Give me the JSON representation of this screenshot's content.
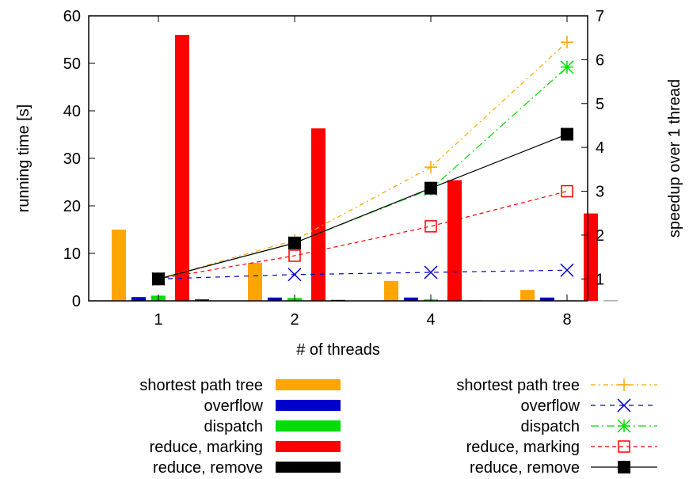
{
  "chart_data": {
    "type": "bar",
    "categories": [
      "1",
      "2",
      "4",
      "8"
    ],
    "xlabel": "# of threads",
    "ylabel": "running time [s]",
    "y2label": "speedup over 1 thread",
    "ylim": [
      0,
      60
    ],
    "yticks": [
      0,
      10,
      20,
      30,
      40,
      50,
      60
    ],
    "y2lim": [
      0.5,
      7
    ],
    "y2ticks": [
      1,
      2,
      3,
      4,
      5,
      6,
      7
    ],
    "grid": false,
    "legend_placement": "bottom",
    "bar_series": [
      {
        "name": "shortest path tree",
        "color": "#ffa500",
        "values": [
          15,
          8,
          4.2,
          2.3
        ]
      },
      {
        "name": "overflow",
        "color": "#0000cc",
        "values": [
          0.8,
          0.7,
          0.7,
          0.7
        ]
      },
      {
        "name": "dispatch",
        "color": "#00dd00",
        "values": [
          1.1,
          0.6,
          0.3,
          0.1
        ]
      },
      {
        "name": "reduce, marking",
        "color": "#ff0000",
        "values": [
          56,
          36.3,
          25.4,
          18.4
        ]
      },
      {
        "name": "reduce, remove",
        "color": "#000000",
        "values": [
          0.3,
          0.2,
          0.1,
          0.05
        ]
      }
    ],
    "line_series": [
      {
        "name": "shortest path tree",
        "color": "#ffa500",
        "marker": "plus",
        "dash": "6,4,2,4",
        "values": [
          1.0,
          1.88,
          3.55,
          6.4
        ]
      },
      {
        "name": "overflow",
        "color": "#0000cc",
        "marker": "cross",
        "dash": "6,6",
        "values": [
          1.0,
          1.1,
          1.15,
          1.2
        ]
      },
      {
        "name": "dispatch",
        "color": "#00dd00",
        "marker": "star",
        "dash": "10,4,2,4",
        "values": [
          1.0,
          1.82,
          3.05,
          5.83
        ]
      },
      {
        "name": "reduce, marking",
        "color": "#ff0000",
        "marker": "open-square",
        "dash": "5,4",
        "values": [
          1.0,
          1.53,
          2.2,
          3.0
        ]
      },
      {
        "name": "reduce, remove",
        "color": "#000000",
        "marker": "filled-square",
        "dash": "",
        "values": [
          1.0,
          1.82,
          3.07,
          4.3
        ]
      }
    ]
  }
}
